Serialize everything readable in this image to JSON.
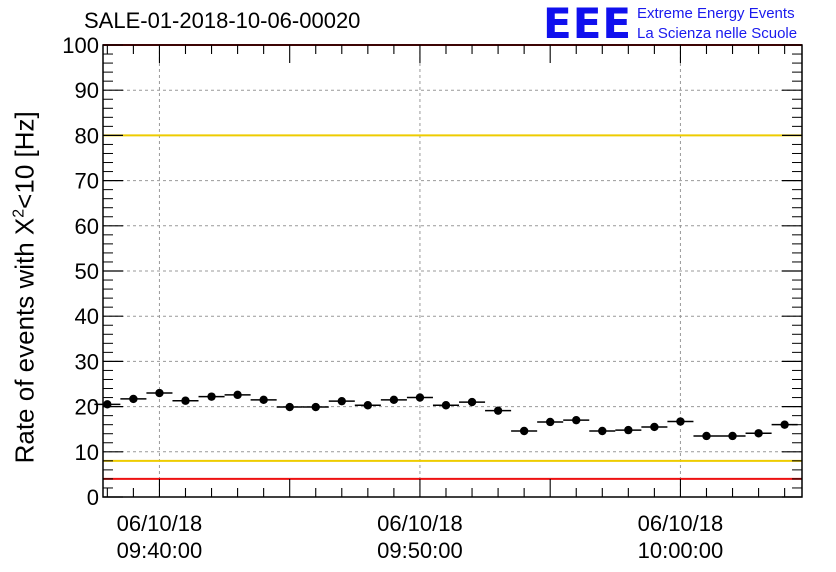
{
  "title": "SALE-01-2018-10-06-00020",
  "logo": {
    "mark": "EEE",
    "line1": "Extreme Energy Events",
    "line2": "La Scienza nelle Scuole"
  },
  "chart_data": {
    "type": "scatter",
    "title": "SALE-01-2018-10-06-00020",
    "ylabel_prefix": "Rate of events with X",
    "ylabel_sup": "2",
    "ylabel_suffix": "<10 [Hz]",
    "ylim": [
      0,
      100
    ],
    "yticks": [
      0,
      10,
      20,
      30,
      40,
      50,
      60,
      70,
      80,
      90,
      100
    ],
    "xlim": [
      "2018-10-06 09:37:50",
      "2018-10-06 10:04:40"
    ],
    "xticks": [
      {
        "date": "06/10/18",
        "time": "09:40:00"
      },
      {
        "date": "06/10/18",
        "time": "09:50:00"
      },
      {
        "date": "06/10/18",
        "time": "10:00:00"
      }
    ],
    "grid": true,
    "reference_lines": [
      {
        "y": 100,
        "color": "#ee1111"
      },
      {
        "y": 80,
        "color": "#eecc00"
      },
      {
        "y": 8,
        "color": "#eecc00"
      },
      {
        "y": 4,
        "color": "#ee1111"
      }
    ],
    "series": [
      {
        "marker_color": "#000000",
        "x": [
          "09:38:00",
          "09:39:00",
          "09:40:00",
          "09:41:00",
          "09:42:00",
          "09:43:00",
          "09:44:00",
          "09:45:00",
          "09:46:00",
          "09:47:00",
          "09:48:00",
          "09:49:00",
          "09:50:00",
          "09:51:00",
          "09:52:00",
          "09:53:00",
          "09:54:00",
          "09:55:00",
          "09:56:00",
          "09:57:00",
          "09:58:00",
          "09:59:00",
          "10:00:00",
          "10:01:00",
          "10:02:00",
          "10:03:00",
          "10:04:00"
        ],
        "y": [
          20.5,
          21.7,
          23.0,
          21.3,
          22.2,
          22.6,
          21.5,
          19.9,
          19.9,
          21.2,
          20.3,
          21.5,
          22.0,
          20.3,
          21.0,
          19.1,
          14.6,
          16.6,
          17.0,
          14.6,
          14.8,
          15.5,
          16.7,
          13.5,
          13.5,
          14.1,
          16.0
        ]
      }
    ]
  }
}
